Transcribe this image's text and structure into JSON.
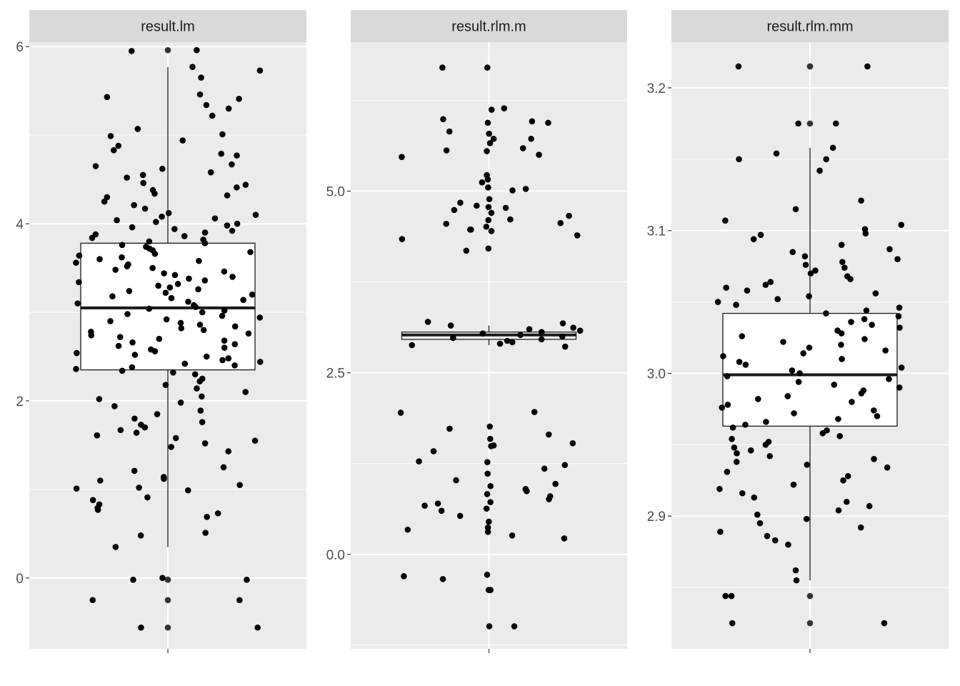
{
  "chart_data": [
    {
      "type": "boxplot",
      "facet": "result.lm",
      "title": "",
      "xlabel": "",
      "ylabel": "",
      "ylim": [
        -0.8,
        6.05
      ],
      "yticks": [
        0,
        2,
        4,
        6
      ],
      "ytick_labels": [
        "0",
        "2",
        "4",
        "6"
      ],
      "box": {
        "q1": 2.35,
        "median": 3.05,
        "q3": 3.78,
        "whisker_low": 0.35,
        "whisker_high": 5.77
      },
      "outliers": [
        5.96,
        -0.02,
        -0.02,
        -0.25,
        -0.56
      ],
      "points": [
        5.96,
        5.95,
        5.77,
        5.73,
        5.65,
        5.46,
        5.43,
        5.41,
        5.34,
        5.3,
        5.22,
        5.07,
        5.01,
        4.99,
        4.94,
        4.88,
        4.83,
        4.79,
        4.77,
        4.67,
        4.65,
        4.62,
        4.58,
        4.55,
        4.52,
        4.46,
        4.44,
        4.41,
        4.38,
        4.34,
        4.32,
        4.3,
        4.25,
        4.21,
        4.17,
        4.12,
        4.1,
        4.08,
        4.06,
        4.04,
        4.02,
        4.0,
        3.98,
        3.96,
        3.94,
        3.92,
        3.9,
        3.88,
        3.86,
        3.84,
        3.82,
        3.8,
        3.78,
        3.76,
        3.74,
        3.72,
        3.7,
        3.68,
        3.66,
        3.64,
        3.62,
        3.6,
        3.58,
        3.56,
        3.54,
        3.52,
        3.5,
        3.48,
        3.46,
        3.44,
        3.42,
        3.4,
        3.38,
        3.36,
        3.34,
        3.32,
        3.3,
        3.28,
        3.26,
        3.24,
        3.22,
        3.2,
        3.18,
        3.16,
        3.14,
        3.12,
        3.1,
        3.08,
        3.06,
        3.04,
        3.02,
        3.0,
        2.98,
        2.96,
        2.94,
        2.92,
        2.9,
        2.88,
        2.86,
        2.84,
        2.82,
        2.8,
        2.78,
        2.76,
        2.74,
        2.72,
        2.7,
        2.68,
        2.66,
        2.64,
        2.62,
        2.6,
        2.58,
        2.56,
        2.54,
        2.52,
        2.5,
        2.48,
        2.46,
        2.44,
        2.42,
        2.4,
        2.38,
        2.36,
        2.34,
        2.32,
        2.3,
        2.25,
        2.22,
        2.18,
        2.14,
        2.1,
        2.05,
        2.02,
        1.98,
        1.94,
        1.89,
        1.85,
        1.8,
        1.76,
        1.73,
        1.7,
        1.67,
        1.64,
        1.61,
        1.58,
        1.55,
        1.52,
        1.48,
        1.43,
        1.25,
        1.21,
        1.14,
        1.12,
        1.1,
        1.05,
        1.02,
        1.01,
        0.99,
        0.91,
        0.88,
        0.83,
        0.79,
        0.77,
        0.73,
        0.69,
        0.51,
        0.48,
        0.35,
        0.0,
        -0.02,
        -0.02,
        -0.25,
        -0.25,
        -0.56,
        -0.56
      ]
    },
    {
      "type": "boxplot",
      "facet": "result.rlm.m",
      "title": "",
      "xlabel": "",
      "ylabel": "",
      "ylim": [
        -1.3,
        7.05
      ],
      "yticks": [
        0.0,
        2.5,
        5.0
      ],
      "ytick_labels": [
        "0.0",
        "2.5",
        "5.0"
      ],
      "box": {
        "q1": 2.96,
        "median": 3.02,
        "q3": 3.06,
        "whisker_low": 2.88,
        "whisker_high": 3.15
      },
      "points": [
        6.7,
        6.7,
        6.14,
        6.12,
        5.99,
        5.96,
        5.94,
        5.94,
        5.82,
        5.79,
        5.72,
        5.72,
        5.66,
        5.59,
        5.56,
        5.55,
        5.5,
        5.47,
        5.22,
        5.16,
        5.12,
        5.05,
        5.03,
        5.01,
        4.89,
        4.84,
        4.8,
        4.78,
        4.77,
        4.74,
        4.7,
        4.66,
        4.61,
        4.6,
        4.56,
        4.55,
        4.51,
        4.47,
        4.47,
        4.45,
        4.39,
        4.34,
        4.21,
        4.18,
        3.2,
        3.18,
        3.15,
        3.12,
        3.1,
        3.08,
        3.06,
        3.04,
        3.02,
        3.0,
        2.98,
        2.96,
        2.94,
        2.92,
        2.9,
        2.88,
        2.86,
        1.96,
        1.95,
        1.76,
        1.73,
        1.65,
        1.59,
        1.53,
        1.5,
        1.49,
        1.42,
        1.28,
        1.27,
        1.23,
        1.18,
        1.11,
        1.02,
        0.97,
        0.94,
        0.9,
        0.87,
        0.83,
        0.8,
        0.76,
        0.72,
        0.7,
        0.67,
        0.63,
        0.6,
        0.53,
        0.45,
        0.37,
        0.34,
        0.31,
        0.26,
        0.22,
        -0.28,
        -0.3,
        -0.34,
        -0.49,
        -0.49,
        -0.99,
        -0.99
      ]
    },
    {
      "type": "boxplot",
      "facet": "result.rlm.mm",
      "title": "",
      "xlabel": "",
      "ylabel": "",
      "ylim": [
        2.807,
        3.232
      ],
      "yticks": [
        2.9,
        3.0,
        3.1,
        3.2
      ],
      "ytick_labels": [
        "2.9",
        "3.0",
        "3.1",
        "3.2"
      ],
      "box": {
        "q1": 2.963,
        "median": 2.999,
        "q3": 3.042,
        "whisker_low": 2.855,
        "whisker_high": 3.158
      },
      "outliers": [
        3.215,
        3.215,
        3.175,
        2.844,
        2.825
      ],
      "points": [
        3.215,
        3.215,
        3.175,
        3.175,
        3.158,
        3.154,
        3.15,
        3.15,
        3.142,
        3.121,
        3.115,
        3.107,
        3.104,
        3.101,
        3.098,
        3.097,
        3.094,
        3.09,
        3.087,
        3.085,
        3.082,
        3.08,
        3.078,
        3.076,
        3.074,
        3.072,
        3.07,
        3.068,
        3.066,
        3.064,
        3.062,
        3.06,
        3.058,
        3.056,
        3.054,
        3.052,
        3.05,
        3.048,
        3.046,
        3.044,
        3.042,
        3.04,
        3.038,
        3.036,
        3.034,
        3.032,
        3.03,
        3.028,
        3.026,
        3.024,
        3.022,
        3.02,
        3.018,
        3.016,
        3.014,
        3.012,
        3.01,
        3.008,
        3.006,
        3.004,
        3.002,
        3.0,
        2.998,
        2.996,
        2.994,
        2.992,
        2.99,
        2.988,
        2.986,
        2.984,
        2.982,
        2.98,
        2.978,
        2.976,
        2.974,
        2.972,
        2.97,
        2.968,
        2.966,
        2.964,
        2.962,
        2.96,
        2.958,
        2.956,
        2.954,
        2.952,
        2.95,
        2.948,
        2.946,
        2.944,
        2.942,
        2.94,
        2.938,
        2.936,
        2.934,
        2.931,
        2.928,
        2.925,
        2.922,
        2.919,
        2.916,
        2.913,
        2.91,
        2.907,
        2.904,
        2.901,
        2.898,
        2.895,
        2.892,
        2.889,
        2.886,
        2.883,
        2.88,
        2.862,
        2.855,
        2.844,
        2.844,
        2.825,
        2.825
      ]
    }
  ],
  "colors": {
    "panel_bg": "#ebebeb",
    "strip_bg": "#d9d9d9",
    "grid": "#ffffff",
    "points": "#000000",
    "box_line": "#1a1a1a"
  }
}
